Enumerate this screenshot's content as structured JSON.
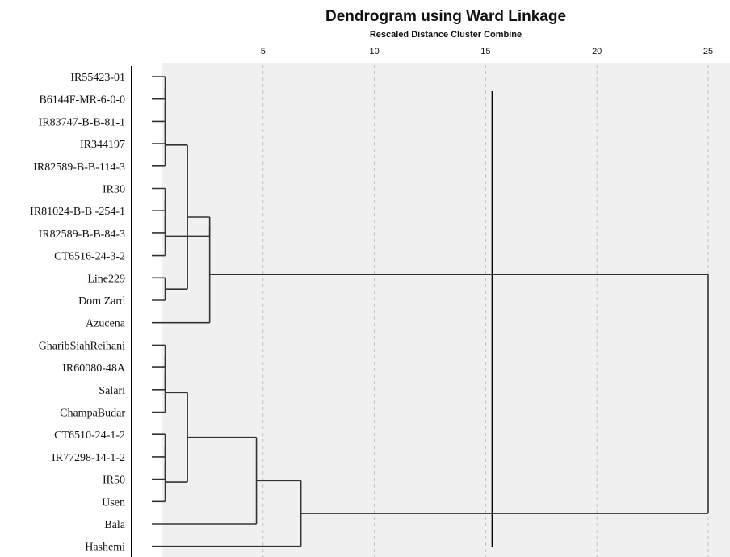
{
  "chart_data": {
    "type": "dendrogram",
    "title": "Dendrogram using Ward Linkage",
    "subtitle": "Rescaled Distance Cluster Combine",
    "x_ticks": [
      5,
      10,
      15,
      20,
      25
    ],
    "xlim": [
      0,
      25
    ],
    "grid": "dashed vertical lines at ticks",
    "cutoff_line_x": 15.3,
    "leaves": [
      "IR55423-01",
      "B6144F-MR-6-0-0",
      "IR83747-B-B-81-1",
      "IR344197",
      "IR82589-B-B-114-3",
      "IR30",
      "IR81024-B-B -254-1",
      "IR82589-B-B-84-3",
      "CT6516-24-3-2",
      "Line229",
      "Dom Zard",
      "Azucena",
      "GharibSiahReihani",
      "IR60080-48A",
      "Salari",
      "ChampaBudar",
      "CT6510-24-1-2",
      "IR77298-14-1-2",
      "IR50",
      "Usen",
      "Bala",
      "Hashemi"
    ],
    "merges": [
      {
        "children": [
          "L0",
          "L1"
        ],
        "height": 0.6
      },
      {
        "children": [
          "M0",
          "L2"
        ],
        "height": 0.6
      },
      {
        "children": [
          "M1",
          "L3"
        ],
        "height": 0.6
      },
      {
        "children": [
          "M2",
          "L4"
        ],
        "height": 0.6
      },
      {
        "children": [
          "L5",
          "L6"
        ],
        "height": 0.6
      },
      {
        "children": [
          "M4",
          "L7"
        ],
        "height": 0.6
      },
      {
        "children": [
          "M5",
          "L8"
        ],
        "height": 0.6
      },
      {
        "children": [
          "L9",
          "L10"
        ],
        "height": 0.6
      },
      {
        "children": [
          "M3",
          "M7"
        ],
        "height": 1.6
      },
      {
        "children": [
          "M8",
          "M6"
        ],
        "height": 2.6
      },
      {
        "children": [
          "M9",
          "L11"
        ],
        "height": 2.6
      },
      {
        "children": [
          "L12",
          "L13"
        ],
        "height": 0.6
      },
      {
        "children": [
          "M11",
          "L14"
        ],
        "height": 0.6
      },
      {
        "children": [
          "M12",
          "L15"
        ],
        "height": 0.6
      },
      {
        "children": [
          "L16",
          "L17"
        ],
        "height": 0.6
      },
      {
        "children": [
          "M14",
          "L18"
        ],
        "height": 0.6
      },
      {
        "children": [
          "M15",
          "L19"
        ],
        "height": 0.6
      },
      {
        "children": [
          "M13",
          "M16"
        ],
        "height": 1.6
      },
      {
        "children": [
          "M17",
          "L20"
        ],
        "height": 4.7
      },
      {
        "children": [
          "M18",
          "L21"
        ],
        "height": 6.7
      },
      {
        "children": [
          "M10",
          "M19"
        ],
        "height": 25
      }
    ]
  }
}
